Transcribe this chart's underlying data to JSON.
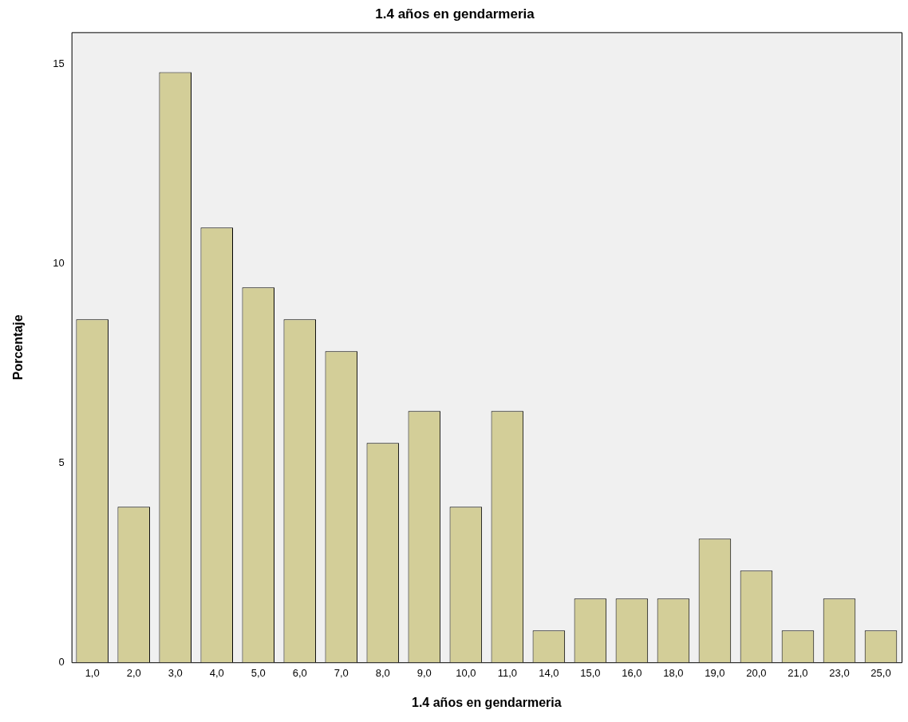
{
  "chart_data": {
    "type": "bar",
    "title": "1.4 años en gendarmeria",
    "xlabel": "1.4 años en gendarmeria",
    "ylabel": "Porcentaje",
    "categories": [
      "1,0",
      "2,0",
      "3,0",
      "4,0",
      "5,0",
      "6,0",
      "7,0",
      "8,0",
      "9,0",
      "10,0",
      "11,0",
      "14,0",
      "15,0",
      "16,0",
      "18,0",
      "19,0",
      "20,0",
      "21,0",
      "23,0",
      "25,0"
    ],
    "values": [
      8.6,
      3.9,
      14.8,
      10.9,
      9.4,
      8.6,
      7.8,
      5.5,
      6.3,
      3.9,
      6.3,
      0.8,
      1.6,
      1.6,
      1.6,
      3.1,
      2.3,
      0.8,
      1.6,
      0.8
    ],
    "color": "#d3ce98",
    "ylim": [
      0,
      15.8
    ],
    "yticks": [
      0,
      5,
      10,
      15
    ],
    "grid": false,
    "legend": false
  }
}
